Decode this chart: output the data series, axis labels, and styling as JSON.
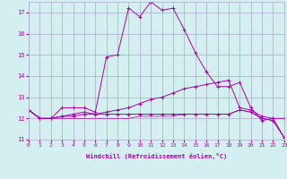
{
  "xlabel": "Windchill (Refroidissement éolien,°C)",
  "bg_color": "#d4efef",
  "grid_color": "#aaaacc",
  "line_color": "#aa00aa",
  "xmin": 0,
  "xmax": 23,
  "ymin": 11,
  "ymax": 17.5,
  "yticks": [
    11,
    12,
    13,
    14,
    15,
    16,
    17
  ],
  "xticks": [
    0,
    1,
    2,
    3,
    4,
    5,
    6,
    7,
    8,
    9,
    10,
    11,
    12,
    13,
    14,
    15,
    16,
    17,
    18,
    19,
    20,
    21,
    22,
    23
  ],
  "curve1_x": [
    0,
    1,
    2,
    3,
    4,
    5,
    6,
    7,
    8,
    9,
    10,
    11,
    12,
    13,
    14,
    15,
    16,
    17,
    18,
    19,
    20,
    21,
    22,
    23
  ],
  "curve1_y": [
    12.4,
    12.0,
    12.0,
    12.5,
    12.5,
    12.5,
    12.3,
    14.9,
    15.0,
    17.2,
    16.8,
    17.5,
    17.1,
    17.2,
    16.2,
    15.1,
    14.2,
    13.5,
    13.5,
    13.7,
    12.5,
    11.9,
    12.0,
    11.1
  ],
  "curve2_x": [
    0,
    1,
    2,
    3,
    4,
    5,
    6,
    7,
    8,
    9,
    10,
    11,
    12,
    13,
    14,
    15,
    16,
    17,
    18,
    19,
    20,
    21,
    22,
    23
  ],
  "curve2_y": [
    12.4,
    12.0,
    12.0,
    12.1,
    12.1,
    12.2,
    12.2,
    12.3,
    12.4,
    12.5,
    12.7,
    12.9,
    13.0,
    13.2,
    13.4,
    13.5,
    13.6,
    13.7,
    13.8,
    12.5,
    12.4,
    12.1,
    12.0,
    12.0
  ],
  "curve3_x": [
    0,
    1,
    2,
    3,
    4,
    5,
    6,
    7,
    8,
    9,
    10,
    11,
    12,
    13,
    14,
    15,
    16,
    17,
    18,
    19,
    20,
    21,
    22,
    23
  ],
  "curve3_y": [
    12.4,
    12.0,
    12.0,
    12.1,
    12.2,
    12.3,
    12.2,
    12.2,
    12.2,
    12.2,
    12.2,
    12.2,
    12.2,
    12.2,
    12.2,
    12.2,
    12.2,
    12.2,
    12.2,
    12.4,
    12.3,
    12.0,
    11.9,
    11.1
  ],
  "curve4_x": [
    0,
    1,
    2,
    3,
    4,
    5,
    6,
    7,
    8,
    9,
    10,
    11,
    12,
    13,
    14,
    15,
    16,
    17,
    18,
    19,
    20,
    21,
    22,
    23
  ],
  "curve4_y": [
    12.4,
    12.0,
    12.0,
    12.0,
    12.0,
    12.0,
    12.0,
    12.0,
    12.0,
    12.0,
    12.1,
    12.1,
    12.1,
    12.1,
    12.2,
    12.2,
    12.2,
    12.2,
    12.2,
    12.4,
    12.3,
    12.0,
    11.9,
    11.1
  ]
}
